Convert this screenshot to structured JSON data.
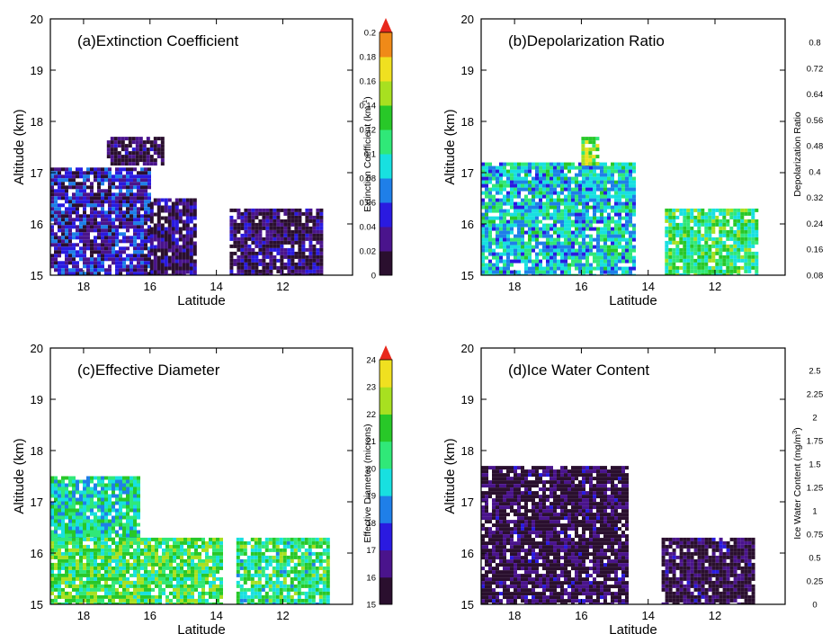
{
  "figure": {
    "panels": [
      {
        "id": "a",
        "title": "(a)Extinction Coefficient",
        "colorbar": {
          "label": "Extinction Coefficient (km",
          "label_sup": "-1",
          "label_suffix": ")",
          "ticks": [
            "0",
            "0.02",
            "0.04",
            "0.06",
            "0.08",
            "0.1",
            "0.12",
            "0.14",
            "0.16",
            "0.18",
            "0.2"
          ],
          "range": [
            0,
            0.2
          ],
          "arrow": "top"
        }
      },
      {
        "id": "b",
        "title": "(b)Depolarization Ratio",
        "colorbar": {
          "label": "Depolarization Ratio",
          "label_sup": "",
          "label_suffix": "",
          "ticks": [
            "0.08",
            "0.16",
            "0.24",
            "0.32",
            "0.4",
            "0.48",
            "0.56",
            "0.64",
            "0.72",
            "0.8"
          ],
          "range": [
            0.08,
            0.8
          ],
          "arrow": "none"
        }
      },
      {
        "id": "c",
        "title": "(c)Effective Diameter",
        "colorbar": {
          "label": "Effective Diameter (microns)",
          "label_sup": "",
          "label_suffix": "",
          "ticks": [
            "15",
            "16",
            "17",
            "18",
            "19",
            "20",
            "21",
            "22",
            "23",
            "24"
          ],
          "range": [
            15,
            24
          ],
          "arrow": "top"
        }
      },
      {
        "id": "d",
        "title": "(d)Ice Water Content",
        "colorbar": {
          "label": "Ice Water Content (mg/m",
          "label_sup": "3",
          "label_suffix": ")",
          "ticks": [
            "0",
            "0.25",
            "0.5",
            "0.75",
            "1",
            "1.25",
            "1.5",
            "1.75",
            "2",
            "2.25",
            "2.5"
          ],
          "range": [
            0,
            2.5
          ],
          "arrow": "none"
        }
      }
    ],
    "colors": {
      "palette": [
        "#2a0f2e",
        "#4a148c",
        "#2a1ae0",
        "#1f7fe8",
        "#18e0e0",
        "#30e878",
        "#28c828",
        "#a8e020",
        "#f0e020",
        "#f08a18",
        "#e8281c"
      ],
      "ec_gradient": [
        "#2a0f2e",
        "#4a148c",
        "#2a1ae0",
        "#1f7fe8",
        "#18e0e0",
        "#30e878",
        "#28c828",
        "#a8e020",
        "#f0e020",
        "#f08a18",
        "#e8281c"
      ],
      "dr_gradient": [
        "#4a148c",
        "#2a1ae0",
        "#1f7fe8",
        "#18e0e0",
        "#30e878",
        "#a8e020",
        "#f0e020",
        "#f08a18",
        "#e8281c"
      ],
      "ed_gradient": [
        "#2a0f2e",
        "#4a148c",
        "#2a1ae0",
        "#1f7fe8",
        "#18e0e0",
        "#30e878",
        "#28c828",
        "#a8e020",
        "#f0e020",
        "#f08a18"
      ],
      "iwc_gradient": [
        "#2a0f2e",
        "#4a148c",
        "#2a1ae0",
        "#1f7fe8",
        "#18e0e0",
        "#30e878",
        "#28c828",
        "#a8e020",
        "#f0e020",
        "#f08a18",
        "#e8281c"
      ]
    }
  },
  "chart_data": [
    {
      "type": "heatmap",
      "title": "(a)Extinction Coefficient",
      "xlabel": "Latitude",
      "ylabel": "Altitude (km)",
      "xlim": [
        19,
        9.9
      ],
      "ylim": [
        15,
        20
      ],
      "x_ticks": [
        18,
        16,
        14,
        12
      ],
      "y_ticks": [
        15,
        16,
        17,
        18,
        19,
        20
      ],
      "x_tick_labels": [
        "18",
        "16",
        "14",
        "12"
      ],
      "y_tick_labels": [
        "15",
        "16",
        "17",
        "18",
        "19",
        "20"
      ],
      "colorbar_range": [
        0,
        0.2
      ],
      "regions": [
        {
          "lat": [
            19.0,
            16.0
          ],
          "alt": [
            15.0,
            17.1
          ],
          "value": 0.04
        },
        {
          "lat": [
            16.0,
            14.6
          ],
          "alt": [
            15.0,
            16.5
          ],
          "value": 0.02
        },
        {
          "lat": [
            17.3,
            15.6
          ],
          "alt": [
            17.2,
            17.7
          ],
          "value": 0.01
        },
        {
          "lat": [
            13.6,
            10.8
          ],
          "alt": [
            15.0,
            16.3
          ],
          "value": 0.02
        }
      ]
    },
    {
      "type": "heatmap",
      "title": "(b)Depolarization Ratio",
      "xlabel": "Latitude",
      "ylabel": "Altitude (km)",
      "xlim": [
        19,
        9.9
      ],
      "ylim": [
        15,
        20
      ],
      "x_ticks": [
        18,
        16,
        14,
        12
      ],
      "y_ticks": [
        15,
        16,
        17,
        18,
        19,
        20
      ],
      "x_tick_labels": [
        "18",
        "16",
        "14",
        "12"
      ],
      "y_tick_labels": [
        "15",
        "16",
        "17",
        "18",
        "19",
        "20"
      ],
      "colorbar_range": [
        0.08,
        0.8
      ],
      "regions": [
        {
          "lat": [
            19.0,
            14.4
          ],
          "alt": [
            15.0,
            17.2
          ],
          "value": 0.4
        },
        {
          "lat": [
            13.5,
            10.8
          ],
          "alt": [
            15.0,
            16.3
          ],
          "value": 0.5
        },
        {
          "lat": [
            16.0,
            15.5
          ],
          "alt": [
            17.2,
            17.7
          ],
          "value": 0.6
        }
      ]
    },
    {
      "type": "heatmap",
      "title": "(c)Effective Diameter",
      "xlabel": "Latitude",
      "ylabel": "Altitude (km)",
      "xlim": [
        19,
        9.9
      ],
      "ylim": [
        15,
        20
      ],
      "x_ticks": [
        18,
        16,
        14,
        12
      ],
      "y_ticks": [
        15,
        16,
        17,
        18,
        19,
        20
      ],
      "x_tick_labels": [
        "18",
        "16",
        "14",
        "12"
      ],
      "y_tick_labels": [
        "15",
        "16",
        "17",
        "18",
        "19",
        "20"
      ],
      "colorbar_range": [
        15,
        24
      ],
      "regions": [
        {
          "lat": [
            19.0,
            16.3
          ],
          "alt": [
            16.3,
            17.5
          ],
          "value": 19.5
        },
        {
          "lat": [
            19.0,
            13.8
          ],
          "alt": [
            15.0,
            16.3
          ],
          "value": 20.5
        },
        {
          "lat": [
            13.4,
            10.6
          ],
          "alt": [
            15.0,
            16.3
          ],
          "value": 20.0
        }
      ]
    },
    {
      "type": "heatmap",
      "title": "(d)Ice Water Content",
      "xlabel": "Latitude",
      "ylabel": "Altitude (km)",
      "xlim": [
        19,
        9.9
      ],
      "ylim": [
        15,
        20
      ],
      "x_ticks": [
        18,
        16,
        14,
        12
      ],
      "y_ticks": [
        15,
        16,
        17,
        18,
        19,
        20
      ],
      "x_tick_labels": [
        "18",
        "16",
        "14",
        "12"
      ],
      "y_tick_labels": [
        "15",
        "16",
        "17",
        "18",
        "19",
        "20"
      ],
      "colorbar_range": [
        0,
        2.5
      ],
      "regions": [
        {
          "lat": [
            19.0,
            14.6
          ],
          "alt": [
            15.0,
            17.7
          ],
          "value": 0.1
        },
        {
          "lat": [
            13.6,
            10.8
          ],
          "alt": [
            15.0,
            16.3
          ],
          "value": 0.1
        }
      ]
    }
  ]
}
